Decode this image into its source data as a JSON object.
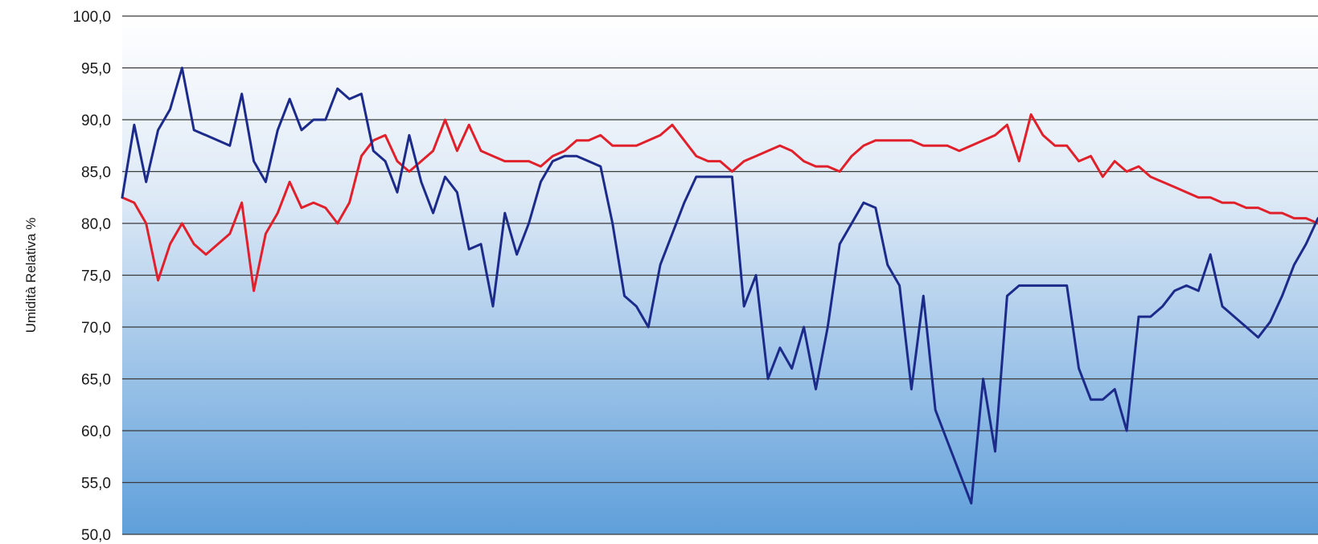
{
  "chart_data": {
    "type": "line",
    "title": "",
    "xlabel": "",
    "ylabel": "Umidità Relativa %",
    "ylim": [
      50,
      100
    ],
    "yticks": [
      50,
      55,
      60,
      65,
      70,
      75,
      80,
      85,
      90,
      95,
      100
    ],
    "ytick_labels": [
      "50,0",
      "55,0",
      "60,0",
      "65,0",
      "70,0",
      "75,0",
      "80,0",
      "85,0",
      "90,0",
      "95,0",
      "100,0"
    ],
    "grid": true,
    "x": [
      0,
      2,
      4,
      6,
      8,
      10,
      12,
      14,
      16,
      18,
      20,
      22,
      24,
      26,
      28,
      30,
      32,
      34,
      36,
      38,
      40,
      42,
      44,
      46,
      48,
      50,
      52,
      54,
      56,
      58,
      60,
      62,
      64,
      66,
      68,
      70,
      72,
      74,
      76,
      78,
      80,
      82,
      84,
      86,
      88,
      90,
      92,
      94,
      96,
      98,
      100,
      102,
      104,
      106,
      108,
      110,
      112,
      114,
      116,
      118,
      120,
      122,
      124,
      126,
      128,
      130,
      132,
      134,
      136,
      138,
      140,
      142,
      144,
      146,
      148,
      150,
      152,
      154,
      156,
      158,
      160,
      162,
      164,
      166,
      168,
      170,
      172,
      174,
      176,
      178,
      180,
      182,
      184,
      186,
      188,
      190,
      192,
      194,
      196,
      198,
      200
    ],
    "xlim": [
      0,
      200
    ],
    "series": [
      {
        "color": "#e0202a",
        "values": [
          82.5,
          82.0,
          80.0,
          74.5,
          78.0,
          80.0,
          78.0,
          77.0,
          78.0,
          79.0,
          82.0,
          73.5,
          79.0,
          81.0,
          84.0,
          81.5,
          82.0,
          81.5,
          80.0,
          82.0,
          86.5,
          88.0,
          88.5,
          86.0,
          85.0,
          86.0,
          87.0,
          90.0,
          87.0,
          89.5,
          87.0,
          86.5,
          86.0,
          86.0,
          86.0,
          85.5,
          86.5,
          87.0,
          88.0,
          88.0,
          88.5,
          87.5,
          87.5,
          87.5,
          88.0,
          88.5,
          89.5,
          88.0,
          86.5,
          86.0,
          86.0,
          85.0,
          86.0,
          86.5,
          87.0,
          87.5,
          87.0,
          86.0,
          85.5,
          85.5,
          85.0,
          86.5,
          87.5,
          88.0,
          88.0,
          88.0,
          88.0,
          87.5,
          87.5,
          87.5,
          87.0,
          87.5,
          88.0,
          88.5,
          89.5,
          86.0,
          90.5,
          88.5,
          87.5,
          87.5,
          86.0,
          86.5,
          84.5,
          86.0,
          85.0,
          85.5,
          84.5,
          84.0,
          83.5,
          83.0,
          82.5,
          82.5,
          82.0,
          82.0,
          81.5,
          81.5,
          81.0,
          81.0,
          80.5,
          80.5,
          80.0
        ]
      },
      {
        "color": "#1c2a8a",
        "values": [
          82.5,
          89.5,
          84.0,
          89.0,
          91.0,
          95.0,
          89.0,
          88.5,
          88.0,
          87.5,
          92.5,
          86.0,
          84.0,
          89.0,
          92.0,
          89.0,
          90.0,
          90.0,
          93.0,
          92.0,
          92.5,
          87.0,
          86.0,
          83.0,
          88.5,
          84.0,
          81.0,
          84.5,
          83.0,
          77.5,
          78.0,
          72.0,
          81.0,
          77.0,
          80.0,
          84.0,
          86.0,
          86.5,
          86.5,
          86.0,
          85.5,
          80.0,
          73.0,
          72.0,
          70.0,
          76.0,
          79.0,
          82.0,
          84.5,
          84.5,
          84.5,
          84.5,
          72.0,
          75.0,
          65.0,
          68.0,
          66.0,
          70.0,
          64.0,
          70.0,
          78.0,
          80.0,
          82.0,
          81.5,
          76.0,
          74.0,
          64.0,
          73.0,
          62.0,
          59.0,
          56.0,
          53.0,
          65.0,
          58.0,
          73.0,
          74.0,
          74.0,
          74.0,
          74.0,
          74.0,
          66.0,
          63.0,
          63.0,
          64.0,
          60.0,
          71.0,
          71.0,
          72.0,
          73.5,
          74.0,
          73.5,
          77.0,
          72.0,
          71.0,
          70.0,
          69.0,
          70.5,
          73.0,
          76.0,
          78.0,
          80.5
        ]
      }
    ]
  }
}
